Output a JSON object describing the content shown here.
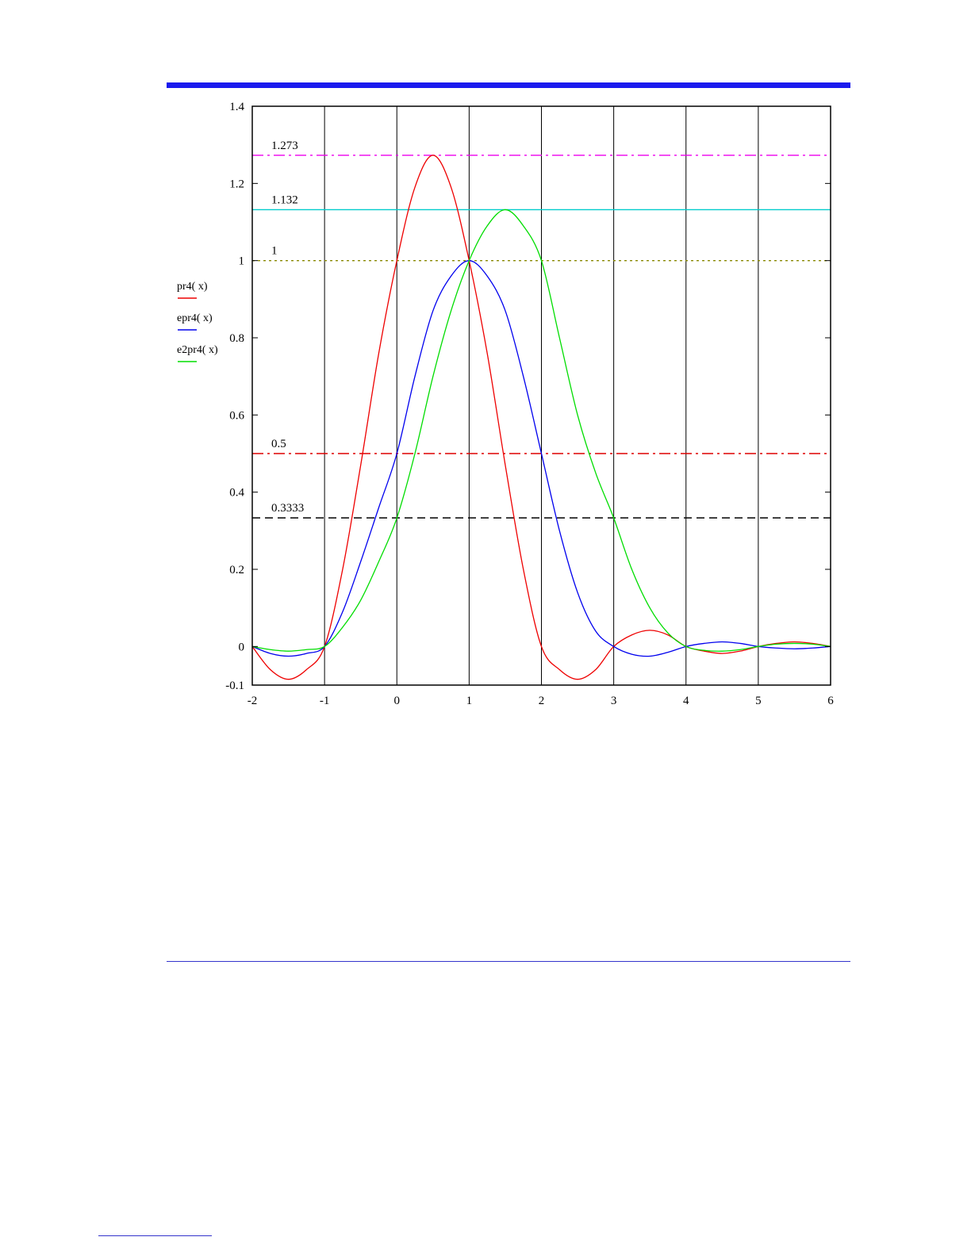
{
  "chart_data": {
    "type": "line",
    "xlim": [
      -2,
      6
    ],
    "ylim": [
      -0.1,
      1.4
    ],
    "x_ticks": [
      "-2",
      "-1",
      "0",
      "1",
      "2",
      "3",
      "4",
      "5",
      "6"
    ],
    "y_ticks": [
      {
        "value": 1.4,
        "label": "1.4"
      },
      {
        "value": 1.2,
        "label": "1.2"
      },
      {
        "value": 1.0,
        "label": "1"
      },
      {
        "value": 0.8,
        "label": "0.8"
      },
      {
        "value": 0.6,
        "label": "0.6"
      },
      {
        "value": 0.4,
        "label": "0.4"
      },
      {
        "value": 0.2,
        "label": "0.2"
      },
      {
        "value": 0.0,
        "label": "0"
      },
      {
        "value": -0.1,
        "label": "-0.1"
      }
    ],
    "grid": "vertical lines at integer x",
    "legend_position": "left",
    "series": [
      {
        "name": "pr4( x)",
        "color": "#ee0000",
        "x": [
          -2,
          -1.75,
          -1.5,
          -1.25,
          -1,
          -0.75,
          -0.5,
          -0.25,
          0,
          0.25,
          0.5,
          0.75,
          1,
          1.25,
          1.5,
          1.75,
          2,
          2.25,
          2.5,
          2.75,
          3,
          3.25,
          3.5,
          3.75,
          4,
          4.25,
          4.5,
          4.75,
          5,
          5.25,
          5.5,
          5.75,
          6
        ],
        "y": [
          0,
          -0.06,
          -0.085,
          -0.06,
          0,
          0.2,
          0.47,
          0.76,
          1.0,
          1.19,
          1.273,
          1.19,
          1.0,
          0.76,
          0.47,
          0.2,
          0,
          -0.06,
          -0.085,
          -0.06,
          0,
          0.03,
          0.042,
          0.03,
          0,
          -0.012,
          -0.018,
          -0.012,
          0,
          0.008,
          0.012,
          0.008,
          0
        ]
      },
      {
        "name": "epr4( x)",
        "color": "#0000ee",
        "x": [
          -2,
          -1.75,
          -1.5,
          -1.25,
          -1,
          -0.75,
          -0.5,
          -0.25,
          0,
          0.25,
          0.5,
          0.75,
          1,
          1.25,
          1.5,
          1.75,
          2,
          2.25,
          2.5,
          2.75,
          3,
          3.25,
          3.5,
          3.75,
          4,
          4.25,
          4.5,
          4.75,
          5,
          5.25,
          5.5,
          5.75,
          6
        ],
        "y": [
          0,
          -0.018,
          -0.025,
          -0.018,
          0,
          0.09,
          0.22,
          0.36,
          0.5,
          0.7,
          0.87,
          0.96,
          1.0,
          0.96,
          0.87,
          0.7,
          0.5,
          0.3,
          0.14,
          0.04,
          0,
          -0.02,
          -0.025,
          -0.015,
          0,
          0.008,
          0.012,
          0.008,
          0,
          -0.004,
          -0.006,
          -0.004,
          0
        ]
      },
      {
        "name": "e2pr4( x)",
        "color": "#00dd00",
        "x": [
          -2,
          -1.75,
          -1.5,
          -1.25,
          -1,
          -0.75,
          -0.5,
          -0.25,
          0,
          0.25,
          0.5,
          0.75,
          1,
          1.25,
          1.5,
          1.75,
          2,
          2.25,
          2.5,
          2.75,
          3,
          3.25,
          3.5,
          3.75,
          4,
          4.25,
          4.5,
          4.75,
          5,
          5.25,
          5.5,
          5.75,
          6
        ],
        "y": [
          0,
          -0.008,
          -0.012,
          -0.008,
          0,
          0.05,
          0.12,
          0.22,
          0.333,
          0.5,
          0.7,
          0.87,
          1.0,
          1.09,
          1.132,
          1.09,
          1.0,
          0.8,
          0.6,
          0.45,
          0.333,
          0.2,
          0.1,
          0.035,
          0,
          -0.01,
          -0.012,
          -0.008,
          0,
          0.006,
          0.008,
          0.006,
          0
        ]
      }
    ],
    "reference_lines": [
      {
        "value": 1.273,
        "label": "1.273",
        "color": "#ee00ee",
        "dash": "dashdot"
      },
      {
        "value": 1.132,
        "label": "1.132",
        "color": "#00cccc",
        "dash": "solid"
      },
      {
        "value": 1.0,
        "label": "1",
        "color": "#888800",
        "dash": "dotted"
      },
      {
        "value": 0.5,
        "label": "0.5",
        "color": "#dd0000",
        "dash": "dashdot"
      },
      {
        "value": 0.3333,
        "label": "0.3333",
        "color": "#000000",
        "dash": "dashed"
      }
    ]
  }
}
